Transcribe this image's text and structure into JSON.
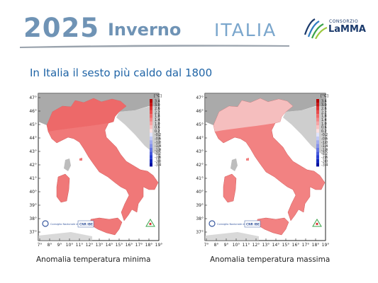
{
  "header": {
    "year": "2025",
    "season": "Inverno",
    "country": "ITALIA"
  },
  "logo": {
    "small_text": "CONSORZIO",
    "big_text": "LaMMA"
  },
  "headline": "In Italia il sesto più caldo dal 1800",
  "maps": [
    {
      "caption": "Anomalia temperatura minima",
      "legend_unit": "[°C]",
      "fill_color": "#f07878",
      "north_color": "#ec6767"
    },
    {
      "caption": "Anomalia temperatura massima",
      "legend_unit": "[°C]",
      "fill_color": "#f28282",
      "north_color": "#f5c4c4"
    }
  ],
  "legend_values": [
    "3.4",
    "3.0",
    "2.6",
    "2.2",
    "1.8",
    "1.4",
    "1.0",
    "0.6",
    "0.2",
    "-0.2",
    "-0.6",
    "-1.0",
    "-1.4",
    "-1.8",
    "-2.2",
    "-2.6",
    "-3.0",
    "-3.4"
  ],
  "lat_ticks": [
    "47°",
    "46°",
    "45°",
    "44°",
    "43°",
    "42°",
    "41°",
    "40°",
    "39°",
    "38°",
    "37°"
  ],
  "lon_ticks": [
    "7°",
    "8°",
    "9°",
    "10°",
    "11°",
    "12°",
    "13°",
    "14°",
    "15°",
    "16°",
    "17°",
    "18°",
    "19°"
  ],
  "credits": {
    "left_text": "Consiglio Nazionale delle Ricerche",
    "right_text": "CNR IBE"
  }
}
